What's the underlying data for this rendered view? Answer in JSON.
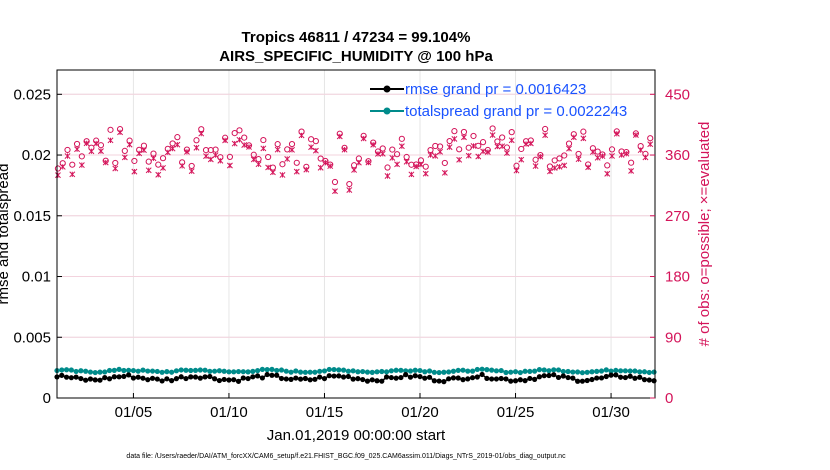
{
  "chart_data": {
    "type": "line",
    "title_line1": "Tropics 46811 / 47234 = 99.104%",
    "title_line2": "AIRS_SPECIFIC_HUMIDITY @ 100 hPa",
    "xlabel": "Jan.01,2019 00:00:00 start",
    "ylabel_left": "rmse and totalspread",
    "ylabel_right": "# of obs: o=possible; ×=evaluated",
    "xlim": [
      1.0,
      32.3
    ],
    "ylim_left": [
      0,
      0.027
    ],
    "ylim_right": [
      0,
      486
    ],
    "x_ticks": [
      {
        "value": 5,
        "label": "01/05"
      },
      {
        "value": 10,
        "label": "01/10"
      },
      {
        "value": 15,
        "label": "01/15"
      },
      {
        "value": 20,
        "label": "01/20"
      },
      {
        "value": 25,
        "label": "01/25"
      },
      {
        "value": 30,
        "label": "01/30"
      }
    ],
    "y_ticks_left": [
      {
        "value": 0,
        "label": "0"
      },
      {
        "value": 0.005,
        "label": "0.005"
      },
      {
        "value": 0.01,
        "label": "0.01"
      },
      {
        "value": 0.015,
        "label": "0.015"
      },
      {
        "value": 0.02,
        "label": "0.02"
      },
      {
        "value": 0.025,
        "label": "0.025"
      }
    ],
    "y_ticks_right": [
      {
        "value": 0,
        "label": "0"
      },
      {
        "value": 90,
        "label": "90"
      },
      {
        "value": 180,
        "label": "180"
      },
      {
        "value": 270,
        "label": "270"
      },
      {
        "value": 360,
        "label": "360"
      },
      {
        "value": 450,
        "label": "450"
      }
    ],
    "series": [
      {
        "name": "rmse",
        "legend": "rmse grand pr = 0.0016423",
        "color": "#000000",
        "marker": "dot",
        "axis": "left",
        "mean": 0.0016423,
        "amplitude": 0.0003
      },
      {
        "name": "totalspread",
        "legend": "totalspread grand pr = 0.0022243",
        "color": "#008b8b",
        "marker": "dot",
        "axis": "left",
        "mean": 0.0022243,
        "amplitude": 0.00015
      }
    ],
    "obs_series": [
      {
        "name": "possible",
        "marker": "o",
        "color": "#d4145a",
        "axis": "right",
        "typical": 365,
        "dips": [
          {
            "x": 15.6,
            "value": 320
          },
          {
            "x": 16.3,
            "value": 317
          },
          {
            "x": 1.1,
            "value": 340
          }
        ]
      },
      {
        "name": "evaluated",
        "marker": "x",
        "color": "#d4145a",
        "axis": "right",
        "typical": 362
      }
    ],
    "grid": true,
    "legend_position": "top-right"
  },
  "footer": "data file: /Users/raeder/DAI/ATM_forcXX/CAM6_setup/f.e21.FHIST_BGC.f09_025.CAM6assim.011/Diags_NTrS_2019-01/obs_diag_output.nc"
}
